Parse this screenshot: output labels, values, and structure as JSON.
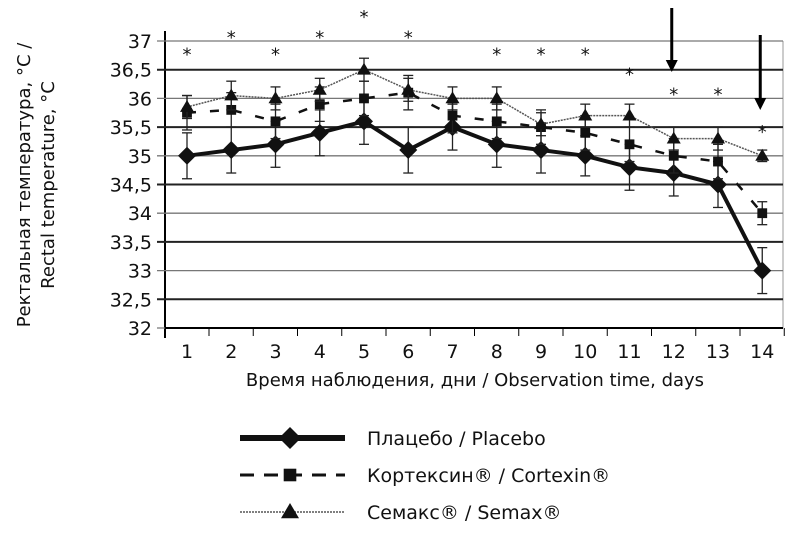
{
  "chart_data": {
    "type": "line",
    "x": [
      1,
      2,
      3,
      4,
      5,
      6,
      7,
      8,
      9,
      10,
      11,
      12,
      13,
      14
    ],
    "xlabel": "Время наблюдения, дни   / Observation time, days",
    "ylabel_ru": "Ректальная температура, °С /",
    "ylabel_en": "Rectal temperature, °С",
    "ylim": [
      32,
      37
    ],
    "yticks": [
      "32",
      "32,5",
      "33",
      "33,5",
      "34",
      "34,5",
      "35",
      "35,5",
      "36",
      "36,5",
      "37"
    ],
    "grid": true,
    "legend_position": "bottom",
    "series": [
      {
        "name": "Плацебо / Placebo",
        "marker": "diamond",
        "style": "solid",
        "values": [
          35.0,
          35.1,
          35.2,
          35.4,
          35.6,
          35.1,
          35.5,
          35.2,
          35.1,
          35.0,
          34.8,
          34.7,
          34.5,
          33.0
        ],
        "error": [
          0.4,
          0.4,
          0.4,
          0.4,
          0.4,
          0.4,
          0.4,
          0.4,
          0.4,
          0.35,
          0.4,
          0.4,
          0.4,
          0.4
        ]
      },
      {
        "name": "Кортексин® / Cortexin®",
        "marker": "square",
        "style": "dashed",
        "values": [
          35.75,
          35.8,
          35.6,
          35.9,
          36.0,
          36.1,
          35.7,
          35.6,
          35.5,
          35.4,
          35.2,
          35.0,
          34.9,
          34.0
        ],
        "error": [
          0.3,
          0.3,
          0.3,
          0.3,
          0.3,
          0.3,
          0.3,
          0.3,
          0.3,
          0.3,
          0.3,
          0.3,
          0.3,
          0.2
        ]
      },
      {
        "name": "Семакс® / Semax®",
        "marker": "triangle",
        "style": "wavy",
        "values": [
          35.85,
          36.05,
          36.0,
          36.15,
          36.5,
          36.15,
          36.0,
          36.0,
          35.55,
          35.7,
          35.7,
          35.3,
          35.3,
          35.0
        ],
        "error": [
          0.2,
          0.25,
          0.2,
          0.2,
          0.2,
          0.2,
          0.2,
          0.2,
          0.2,
          0.2,
          0.2,
          0.2,
          0.2,
          0.1
        ]
      }
    ],
    "annotations": {
      "asterisks": [
        [
          1,
          36.8
        ],
        [
          2,
          37.1
        ],
        [
          3,
          36.8
        ],
        [
          4,
          37.1
        ],
        [
          5,
          37.45
        ],
        [
          6,
          37.1
        ],
        [
          8,
          36.8
        ],
        [
          9,
          36.8
        ],
        [
          10,
          36.8
        ],
        [
          11,
          36.45
        ],
        [
          12,
          36.1
        ],
        [
          13,
          36.1
        ],
        [
          14,
          35.45
        ]
      ],
      "arrows_at_day": [
        12,
        14
      ]
    }
  }
}
